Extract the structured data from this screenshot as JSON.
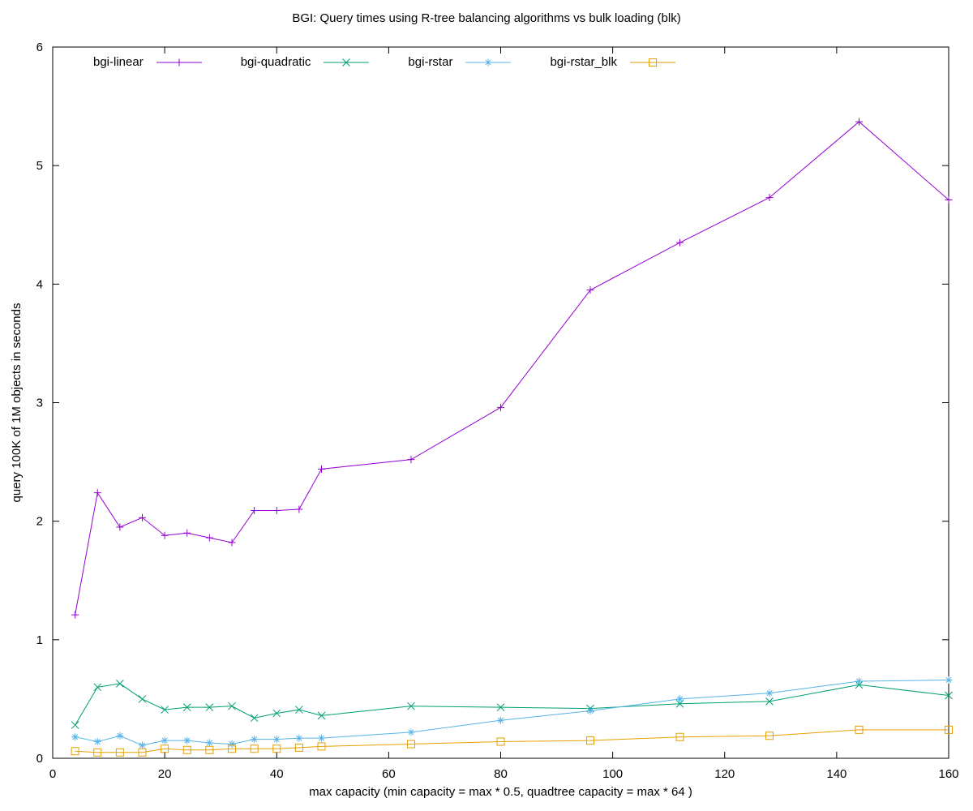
{
  "chart_data": {
    "type": "line",
    "title": "BGI: Query times using R-tree balancing algorithms vs bulk loading (blk)",
    "xlabel": "max capacity (min capacity = max * 0.5, quadtree capacity = max * 64 )",
    "ylabel": "query 100K of 1M objects in seconds",
    "xlim": [
      0,
      160
    ],
    "ylim": [
      0,
      6
    ],
    "xticks": [
      0,
      20,
      40,
      60,
      80,
      100,
      120,
      140,
      160
    ],
    "yticks": [
      0,
      1,
      2,
      3,
      4,
      5,
      6
    ],
    "grid": false,
    "legend_position": "top-inside-horizontal",
    "x": [
      4,
      8,
      12,
      16,
      20,
      24,
      28,
      32,
      36,
      40,
      44,
      48,
      64,
      80,
      96,
      112,
      128,
      144,
      160
    ],
    "series": [
      {
        "name": "bgi-linear",
        "color": "#9400d3",
        "marker": "plus",
        "values": [
          1.21,
          2.24,
          1.95,
          2.03,
          1.88,
          1.9,
          1.86,
          1.82,
          2.09,
          2.09,
          2.1,
          2.44,
          2.52,
          2.96,
          3.95,
          4.35,
          4.73,
          5.37,
          4.71
        ]
      },
      {
        "name": "bgi-quadratic",
        "color": "#009e73",
        "marker": "cross",
        "values": [
          0.28,
          0.6,
          0.63,
          0.5,
          0.41,
          0.43,
          0.43,
          0.44,
          0.34,
          0.38,
          0.41,
          0.36,
          0.44,
          0.43,
          0.42,
          0.46,
          0.48,
          0.62,
          0.53
        ]
      },
      {
        "name": "bgi-rstar",
        "color": "#56b4e9",
        "marker": "asterisk",
        "values": [
          0.18,
          0.14,
          0.19,
          0.11,
          0.15,
          0.15,
          0.13,
          0.12,
          0.16,
          0.16,
          0.17,
          0.17,
          0.22,
          0.32,
          0.4,
          0.5,
          0.55,
          0.65,
          0.66
        ]
      },
      {
        "name": "bgi-rstar_blk",
        "color": "#e69f00",
        "marker": "square",
        "values": [
          0.06,
          0.05,
          0.05,
          0.05,
          0.08,
          0.07,
          0.07,
          0.08,
          0.08,
          0.08,
          0.09,
          0.1,
          0.12,
          0.14,
          0.15,
          0.18,
          0.19,
          0.24,
          0.24
        ]
      }
    ]
  }
}
